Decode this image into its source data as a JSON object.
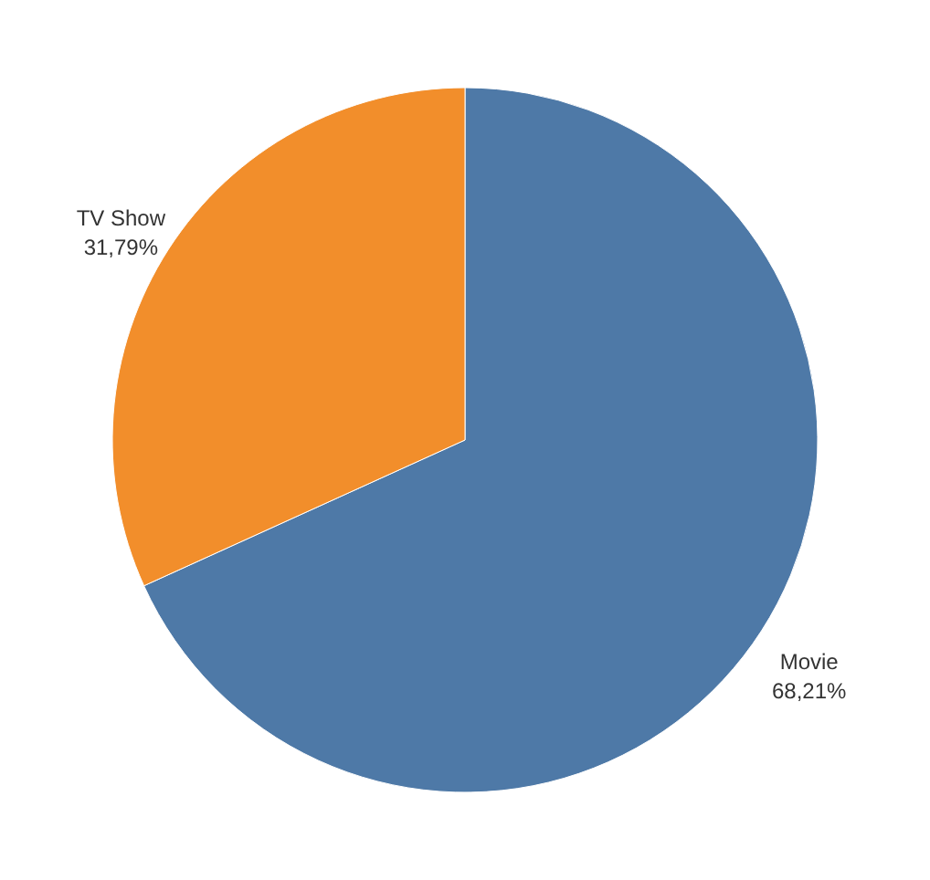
{
  "chart_data": {
    "type": "pie",
    "categories": [
      "Movie",
      "TV Show"
    ],
    "values": [
      68.21,
      31.79
    ],
    "colors": [
      "#4e79a7",
      "#f28e2b"
    ],
    "value_labels": [
      "68,21%",
      "31,79%"
    ]
  }
}
